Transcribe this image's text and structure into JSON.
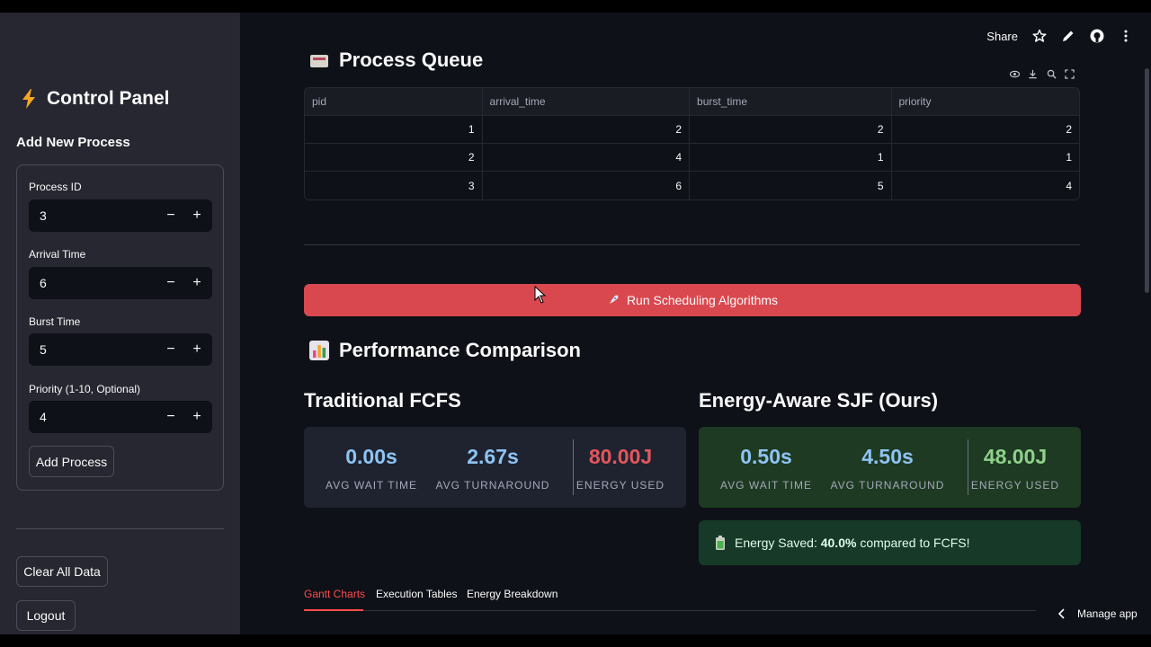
{
  "sidebar": {
    "title": "Control Panel",
    "form_title": "Add New Process",
    "fields": [
      {
        "label": "Process ID",
        "value": "3"
      },
      {
        "label": "Arrival Time",
        "value": "6"
      },
      {
        "label": "Burst Time",
        "value": "5"
      },
      {
        "label": "Priority (1-10, Optional)",
        "value": "4"
      }
    ],
    "stepper_minus": "−",
    "stepper_plus": "+",
    "add_button": "Add Process",
    "clear_button": "Clear All Data",
    "logout_button": "Logout"
  },
  "header": {
    "share_label": "Share"
  },
  "queue": {
    "title": "Process Queue",
    "columns": [
      "pid",
      "arrival_time",
      "burst_time",
      "priority"
    ],
    "rows": [
      [
        "1",
        "2",
        "2",
        "2"
      ],
      [
        "2",
        "4",
        "1",
        "1"
      ],
      [
        "3",
        "6",
        "5",
        "4"
      ]
    ]
  },
  "run_button": "Run Scheduling Algorithms",
  "comparison": {
    "title": "Performance Comparison",
    "fcfs": {
      "title": "Traditional FCFS",
      "wait": "0.00s",
      "wait_label": "AVG WAIT TIME",
      "turnaround": "2.67s",
      "turnaround_label": "AVG TURNAROUND",
      "energy": "80.00J",
      "energy_label": "ENERGY USED"
    },
    "sjf": {
      "title": "Energy-Aware SJF (Ours)",
      "wait": "0.50s",
      "wait_label": "AVG WAIT TIME",
      "turnaround": "4.50s",
      "turnaround_label": "AVG TURNAROUND",
      "energy": "48.00J",
      "energy_label": "ENERGY USED"
    },
    "savings_prefix": "Energy Saved: ",
    "savings_value": "40.0%",
    "savings_suffix": " compared to FCFS!"
  },
  "tabs": [
    "Gantt Charts",
    "Execution Tables",
    "Energy Breakdown"
  ],
  "manage_app": "Manage app",
  "colors": {
    "accent_red": "#ff4b4b",
    "run_button": "#d9484f",
    "metric_blue": "#8ec3f3",
    "metric_red": "#e3565c",
    "metric_green": "#8fd18b"
  }
}
